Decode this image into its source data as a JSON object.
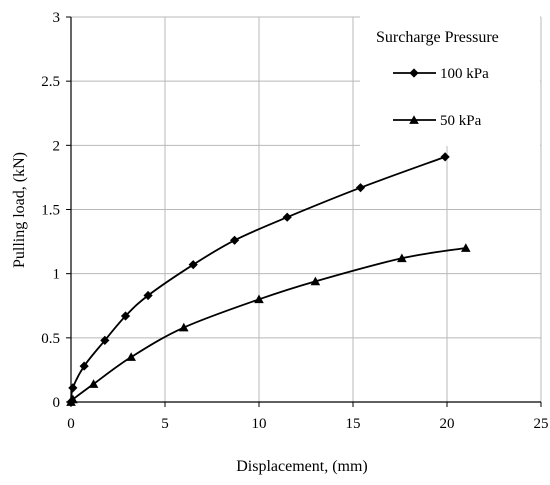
{
  "chart_data": {
    "type": "line",
    "title": "",
    "xlabel": "Displacement, (mm)",
    "ylabel": "Pulling load, (kN)",
    "xlim": [
      0,
      25
    ],
    "ylim": [
      0,
      3
    ],
    "xticks": [
      0,
      5,
      10,
      15,
      20,
      25
    ],
    "yticks": [
      0,
      0.5,
      1,
      1.5,
      2,
      2.5,
      3
    ],
    "xtick_labels": [
      "0",
      "5",
      "10",
      "15",
      "20",
      "25"
    ],
    "ytick_labels": [
      "0",
      "0.5",
      "1",
      "1.5",
      "2",
      "2.5",
      "3"
    ],
    "grid": "both",
    "legend": {
      "title": "Surcharge Pressure",
      "placement": "top-right"
    },
    "series": [
      {
        "name": "100 kPa",
        "marker": "diamond",
        "color": "#000000",
        "x": [
          0.0,
          0.1,
          0.7,
          1.8,
          2.9,
          4.1,
          6.5,
          8.7,
          11.5,
          15.4,
          19.9
        ],
        "y": [
          0.0,
          0.11,
          0.28,
          0.48,
          0.67,
          0.83,
          1.07,
          1.26,
          1.44,
          1.67,
          1.91
        ]
      },
      {
        "name": "50 kPa",
        "marker": "triangle",
        "color": "#000000",
        "x": [
          0.0,
          0.1,
          1.2,
          3.2,
          6.0,
          10.0,
          13.0,
          17.6,
          21.0
        ],
        "y": [
          0.0,
          0.02,
          0.14,
          0.35,
          0.58,
          0.8,
          0.94,
          1.12,
          1.2
        ]
      }
    ]
  }
}
